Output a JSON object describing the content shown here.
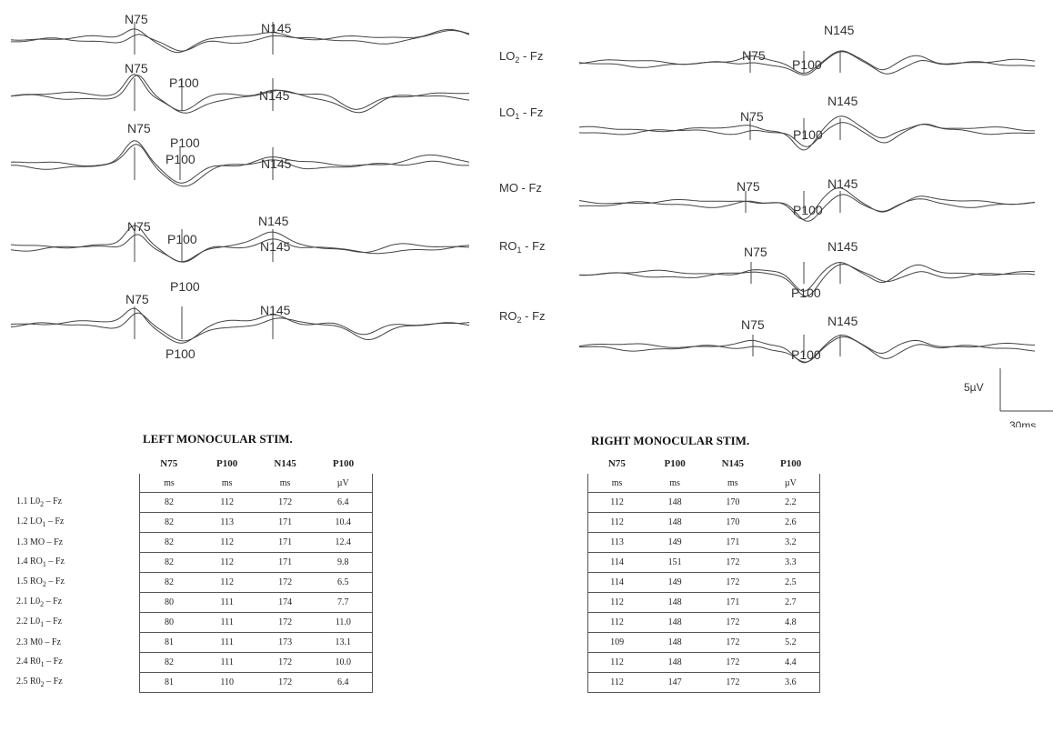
{
  "figure": {
    "left_panel": {
      "traces": [
        {
          "labels": [
            {
              "text": "N75"
            },
            {
              "text": "N145"
            }
          ]
        },
        {
          "labels": [
            {
              "text": "N75"
            },
            {
              "text": "P100"
            },
            {
              "text": "N145"
            }
          ]
        },
        {
          "labels": [
            {
              "text": "N75"
            },
            {
              "text": "P100"
            },
            {
              "text": "P100"
            },
            {
              "text": "N145"
            }
          ]
        },
        {
          "labels": [
            {
              "text": "N75"
            },
            {
              "text": "P100"
            },
            {
              "text": "N145"
            },
            {
              "text": "N145"
            }
          ]
        },
        {
          "labels": [
            {
              "text": "N75"
            },
            {
              "text": "P100"
            },
            {
              "text": "N145"
            },
            {
              "text": "P100"
            }
          ]
        }
      ]
    },
    "lead_labels": [
      {
        "main": "LO",
        "sub": "2",
        "suffix": " - Fz"
      },
      {
        "main": "LO",
        "sub": "1",
        "suffix": " - Fz"
      },
      {
        "main": "MO - Fz",
        "sub": "",
        "suffix": ""
      },
      {
        "main": "RO",
        "sub": "1",
        "suffix": " - Fz"
      },
      {
        "main": "RO",
        "sub": "2",
        "suffix": " - Fz"
      }
    ],
    "right_panel": {
      "traces": [
        {
          "labels": [
            {
              "text": "N75"
            },
            {
              "text": "P100"
            },
            {
              "text": "N145"
            }
          ]
        },
        {
          "labels": [
            {
              "text": "N75"
            },
            {
              "text": "P100"
            },
            {
              "text": "N145"
            }
          ]
        },
        {
          "labels": [
            {
              "text": "N75"
            },
            {
              "text": "P100"
            },
            {
              "text": "N145"
            }
          ]
        },
        {
          "labels": [
            {
              "text": "N75"
            },
            {
              "text": "P100"
            },
            {
              "text": "N145"
            }
          ]
        },
        {
          "labels": [
            {
              "text": "N75"
            },
            {
              "text": "P100"
            },
            {
              "text": "N145"
            }
          ]
        }
      ]
    },
    "scale_bar": {
      "amplitude": "5µV",
      "time": "30ms"
    }
  },
  "left_table": {
    "title": "LEFT MONOCULAR STIM.",
    "columns": [
      "N75",
      "P100",
      "N145",
      "P100"
    ],
    "units": [
      "ms",
      "ms",
      "ms",
      "µV"
    ],
    "rows": [
      {
        "label_main": "1.1 L0",
        "label_sub": "2",
        "label_suffix": " – Fz",
        "values": [
          "82",
          "112",
          "172",
          "6.4"
        ]
      },
      {
        "label_main": "1.2 LO",
        "label_sub": "1",
        "label_suffix": " – Fz",
        "values": [
          "82",
          "113",
          "171",
          "10.4"
        ]
      },
      {
        "label_main": "1.3 MO – Fz",
        "label_sub": "",
        "label_suffix": "",
        "values": [
          "82",
          "112",
          "171",
          "12.4"
        ]
      },
      {
        "label_main": "1.4 RO",
        "label_sub": "1",
        "label_suffix": " – Fz",
        "values": [
          "82",
          "112",
          "171",
          "9.8"
        ]
      },
      {
        "label_main": "1.5 RO",
        "label_sub": "2",
        "label_suffix": " – Fz",
        "values": [
          "82",
          "112",
          "172",
          "6.5"
        ]
      },
      {
        "label_main": "2.1 L0",
        "label_sub": "2",
        "label_suffix": "  – Fz",
        "values": [
          "80",
          "111",
          "174",
          "7.7"
        ]
      },
      {
        "label_main": "2.2 L0",
        "label_sub": "1",
        "label_suffix": "  – Fz",
        "values": [
          "80",
          "111",
          "172",
          "11.0"
        ]
      },
      {
        "label_main": "2.3 M0  – Fz",
        "label_sub": "",
        "label_suffix": "",
        "values": [
          "81",
          "111",
          "173",
          "13.1"
        ]
      },
      {
        "label_main": "2.4 R0",
        "label_sub": "1",
        "label_suffix": " – Fz",
        "values": [
          "82",
          "111",
          "172",
          "10.0"
        ]
      },
      {
        "label_main": "2.5 R0",
        "label_sub": "2",
        "label_suffix": " – Fz",
        "values": [
          "81",
          "110",
          "172",
          "6.4"
        ]
      }
    ]
  },
  "right_table": {
    "title": "RIGHT MONOCULAR STIM.",
    "columns": [
      "N75",
      "P100",
      "N145",
      "P100"
    ],
    "units": [
      "ms",
      "ms",
      "ms",
      "µV"
    ],
    "rows": [
      {
        "values": [
          "112",
          "148",
          "170",
          "2.2"
        ]
      },
      {
        "values": [
          "112",
          "148",
          "170",
          "2.6"
        ]
      },
      {
        "values": [
          "113",
          "149",
          "171",
          "3.2"
        ]
      },
      {
        "values": [
          "114",
          "151",
          "172",
          "3.3"
        ]
      },
      {
        "values": [
          "114",
          "149",
          "172",
          "2.5"
        ]
      },
      {
        "values": [
          "112",
          "148",
          "171",
          "2.7"
        ]
      },
      {
        "values": [
          "112",
          "148",
          "172",
          "4.8"
        ]
      },
      {
        "values": [
          "109",
          "148",
          "172",
          "5.2"
        ]
      },
      {
        "values": [
          "112",
          "148",
          "172",
          "4.4"
        ]
      },
      {
        "values": [
          "112",
          "147",
          "172",
          "3.6"
        ]
      }
    ]
  }
}
